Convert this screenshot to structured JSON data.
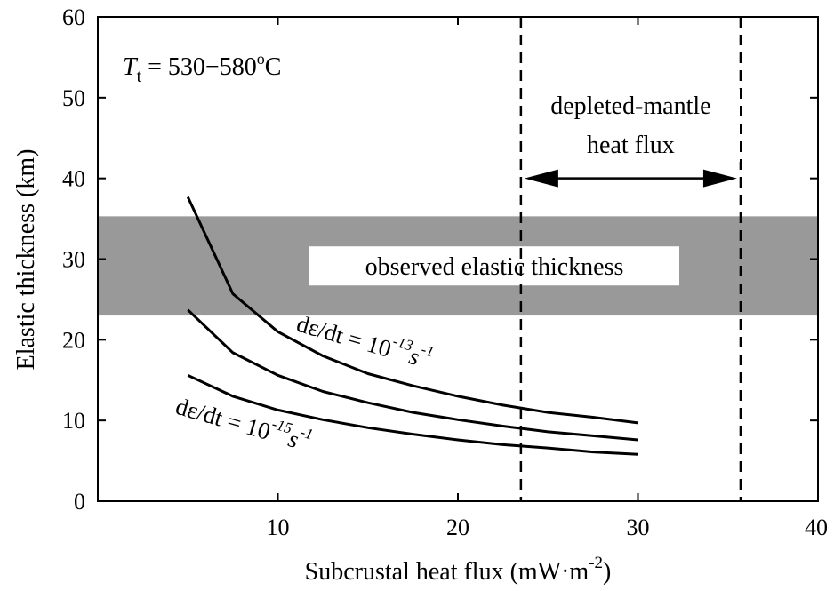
{
  "chart_data": {
    "type": "line",
    "xlabel": "Subcrustal heat flux (mW·m",
    "xlabel_sup": "-2",
    "xlabel_close": ")",
    "ylabel": "Elastic thickness (km)",
    "xlim": [
      0,
      40
    ],
    "ylim": [
      0,
      60
    ],
    "xticks": [
      10,
      20,
      30,
      40
    ],
    "xtick_labels": [
      "10",
      "20",
      "30",
      "40"
    ],
    "yticks": [
      0,
      10,
      20,
      30,
      40,
      50,
      60
    ],
    "ytick_labels": [
      "0",
      "10",
      "20",
      "30",
      "40",
      "50",
      "60"
    ],
    "grid": false,
    "band": {
      "y0": 23,
      "y1": 35.3,
      "color": "#999999",
      "label": "observed elastic thickness"
    },
    "vlines": [
      23.5,
      35.7
    ],
    "vline_label_1": "depleted-mantle",
    "vline_label_2": "heat flux",
    "arrow_span": [
      23.5,
      35.7
    ],
    "arrow_y": 40,
    "temperature_label": {
      "T": "T",
      "sub": "t",
      "rest": " = 530−580",
      "sup": "o",
      "unit": "C"
    },
    "rate_label_top": {
      "base": "dε/dt = 10",
      "exp": "-13",
      "unit": "s",
      "unit_exp": "-1"
    },
    "rate_label_bottom": {
      "base": "dε/dt = 10",
      "exp": "-15",
      "unit": "s",
      "unit_exp": "-1"
    },
    "series": [
      {
        "x": [
          5,
          7.5,
          10,
          12.5,
          15,
          17.5,
          20,
          22.5,
          25,
          27.5,
          30
        ],
        "y": [
          37.7,
          25.7,
          21,
          18,
          15.8,
          14.3,
          13,
          11.9,
          11,
          10.4,
          9.7
        ]
      },
      {
        "x": [
          5,
          7.5,
          10,
          12.5,
          15,
          17.5,
          20,
          22.5,
          25,
          27.5,
          30
        ],
        "y": [
          23.7,
          18.4,
          15.6,
          13.6,
          12.2,
          11,
          10.1,
          9.3,
          8.6,
          8.1,
          7.6
        ]
      },
      {
        "x": [
          5,
          7.5,
          10,
          12.5,
          15,
          17.5,
          20,
          22.5,
          25,
          27.5,
          30
        ],
        "y": [
          15.6,
          13,
          11.3,
          10.1,
          9.1,
          8.3,
          7.6,
          7,
          6.6,
          6.1,
          5.8
        ]
      }
    ]
  }
}
